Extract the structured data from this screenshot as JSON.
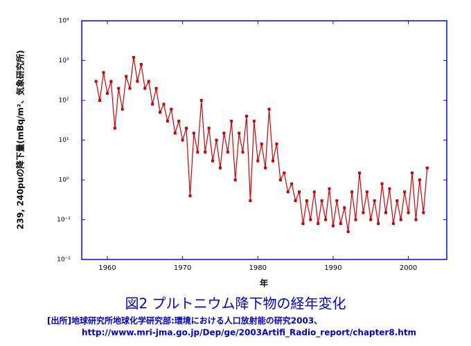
{
  "chart_data": {
    "type": "line",
    "y_label": "239, 240puの降下量(mBq/m²、気象研究所)",
    "x_label": "年",
    "caption": "図2  プルトニウム降下物の経年変化",
    "source": [
      "[出所]地球研究所地球化学研究部:環境における人口放射能の研究2003、",
      "http://www.mri-jma.go.jp/Dep/ge/2003Artifi_Radio_report/chapter8.htm"
    ],
    "log_y": true,
    "color": "#cc0000",
    "xlim": [
      1956.6,
      2005.1
    ],
    "xticks": [
      1960,
      1970,
      1980,
      1990,
      2000
    ],
    "ylim": [
      0.01,
      10000
    ],
    "yticks": [
      {
        "value": 10000,
        "label": "10⁴"
      },
      {
        "value": 1000,
        "label": "10³"
      },
      {
        "value": 100,
        "label": "10²"
      },
      {
        "value": 10,
        "label": "10¹"
      },
      {
        "value": 1,
        "label": "10⁰"
      },
      {
        "value": 0.1,
        "label": "10⁻¹"
      },
      {
        "value": 0.01,
        "label": "10⁻²"
      }
    ],
    "x": [
      1958.5,
      1959,
      1959.5,
      1960,
      1960.5,
      1961,
      1961.5,
      1962,
      1962.5,
      1963,
      1963.5,
      1964,
      1964.5,
      1965,
      1965.5,
      1966,
      1966.5,
      1967,
      1967.5,
      1968,
      1968.5,
      1969,
      1969.5,
      1970,
      1970.5,
      1971,
      1971.5,
      1972,
      1972.5,
      1973,
      1973.5,
      1974,
      1974.5,
      1975,
      1975.5,
      1976,
      1976.5,
      1977,
      1977.5,
      1978,
      1978.5,
      1979,
      1979.5,
      1980,
      1980.5,
      1981,
      1981.5,
      1982,
      1982.5,
      1983,
      1983.5,
      1984,
      1984.5,
      1985,
      1985.5,
      1986,
      1986.5,
      1987,
      1987.5,
      1988,
      1988.5,
      1989,
      1989.5,
      1990,
      1990.5,
      1991,
      1991.5,
      1992,
      1992.5,
      1993,
      1993.5,
      1994,
      1994.5,
      1995,
      1995.5,
      1996,
      1996.5,
      1997,
      1997.5,
      1998,
      1998.5,
      1999,
      1999.5,
      2000,
      2000.5,
      2001,
      2001.5,
      2002,
      2002.5
    ],
    "values": [
      300,
      100,
      500,
      150,
      300,
      20,
      200,
      60,
      400,
      200,
      1200,
      300,
      800,
      200,
      300,
      80,
      200,
      50,
      80,
      30,
      60,
      15,
      30,
      10,
      20,
      0.4,
      15,
      5,
      100,
      5,
      20,
      3,
      10,
      2,
      15,
      5,
      30,
      1,
      15,
      5,
      40,
      0.3,
      30,
      3,
      8,
      2,
      60,
      3,
      8,
      1,
      1.5,
      0.5,
      0.8,
      0.3,
      0.5,
      0.08,
      0.3,
      0.1,
      0.5,
      0.08,
      0.3,
      0.1,
      0.6,
      0.07,
      0.3,
      0.08,
      0.2,
      0.05,
      0.5,
      0.1,
      1.5,
      0.15,
      0.5,
      0.1,
      0.3,
      0.08,
      0.8,
      0.15,
      0.6,
      0.08,
      0.3,
      0.1,
      0.5,
      0.15,
      1.5,
      0.1,
      1.0,
      0.15,
      2.0
    ]
  }
}
